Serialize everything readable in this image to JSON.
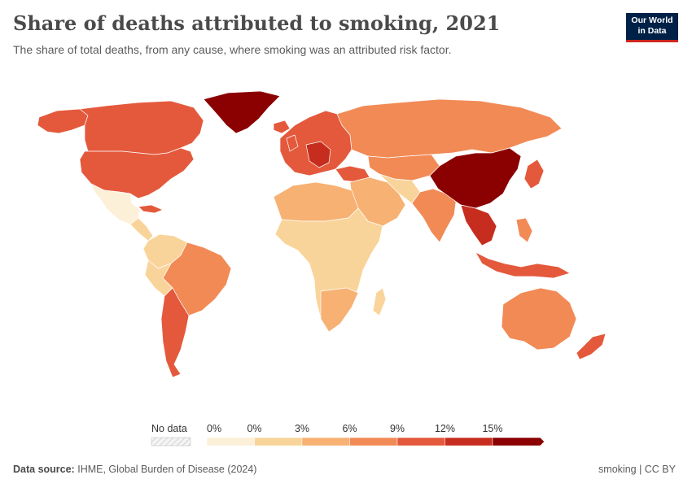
{
  "title": "Share of deaths attributed to smoking, 2021",
  "subtitle": "The share of total deaths, from any cause, where smoking was an attributed risk factor.",
  "logo": {
    "line1": "Our World",
    "line2": "in Data"
  },
  "legend": {
    "no_data_label": "No data",
    "bins": [
      {
        "label": "0%",
        "color": "#fdf0d8"
      },
      {
        "label": "0%",
        "color": "#f9d49a"
      },
      {
        "label": "3%",
        "color": "#f7b173"
      },
      {
        "label": "6%",
        "color": "#f28a55"
      },
      {
        "label": "9%",
        "color": "#e4593c"
      },
      {
        "label": "12%",
        "color": "#c62d1f"
      },
      {
        "label": "15%",
        "color": "#8b0000"
      }
    ]
  },
  "footer": {
    "source_label": "Data source:",
    "source_text": "IHME, Global Burden of Disease (2024)",
    "right_text": "smoking | CC BY"
  }
}
